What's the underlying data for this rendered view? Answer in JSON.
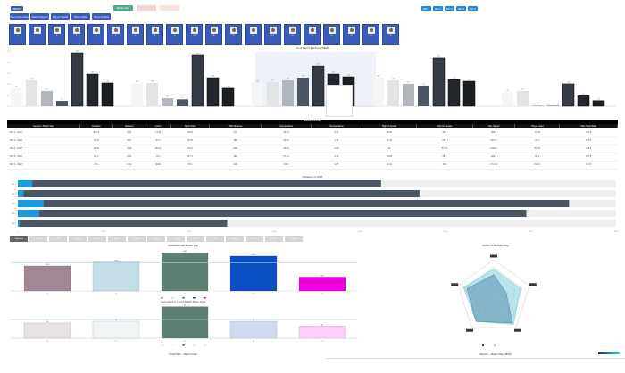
{
  "header": {
    "menu_label": "MENU",
    "filter_buttons": [
      "Match Day",
      "",
      ""
    ],
    "nav_buttons": [
      "MD 1",
      "MD 2",
      "MD 3",
      "MD 4",
      "MD 5"
    ],
    "view_buttons": [
      "Team Overview",
      "Match Report",
      "Player Detail",
      "Team Stats",
      "Team Charts"
    ]
  },
  "players": [
    {
      "num": "1"
    },
    {
      "num": "2"
    },
    {
      "num": "3"
    },
    {
      "num": "4"
    },
    {
      "num": "5"
    },
    {
      "num": "6"
    },
    {
      "num": "7"
    },
    {
      "num": "8"
    },
    {
      "num": "9"
    },
    {
      "num": "10"
    },
    {
      "num": "11"
    },
    {
      "num": "12"
    },
    {
      "num": "13"
    },
    {
      "num": "14"
    },
    {
      "num": "15"
    },
    {
      "num": "16"
    },
    {
      "num": "17"
    },
    {
      "num": "18"
    },
    {
      "num": "19"
    },
    {
      "num": "20"
    }
  ],
  "colors": {
    "brand": "#3a5bb8",
    "accent": "#1a9be0",
    "dark_bar": "#4b5563",
    "highlight_panel": "#eef1f8"
  },
  "chart_data": [
    {
      "type": "bar",
      "title": "% vs Last 5 Matches (MD5)",
      "groups": 5,
      "series": [
        {
          "color": "#f4f5f6",
          "values": [
            81,
            105,
            105,
            129,
            63
          ]
        },
        {
          "color": "#e2e4e6",
          "values": [
            117,
            105,
            110,
            117,
            69
          ]
        },
        {
          "color": "#b0b6bc",
          "values": [
            69,
            36,
            117,
            101,
            3
          ]
        },
        {
          "color": "#4b5563",
          "values": [
            24,
            31,
            129,
            93,
            2
          ]
        },
        {
          "color": "#353b45",
          "values": [
            242,
            230,
            181,
            218,
            101
          ]
        },
        {
          "color": "#23272d",
          "values": [
            145,
            129,
            145,
            121,
            47
          ]
        },
        {
          "color": "#1b1e22",
          "values": [
            105,
            81,
            133,
            113,
            25
          ]
        }
      ],
      "ylim": [
        0,
        250
      ]
    },
    {
      "type": "bar",
      "orientation": "horizontal",
      "title": "Distance vs HSR",
      "categories": [
        "MD 1",
        "MD 2",
        "MD 3",
        "MD 4",
        "MD 5"
      ],
      "series": [
        {
          "color": "#1a9be0",
          "values": [
            170,
            70,
            300,
            250,
            20
          ]
        },
        {
          "color": "#4b5563",
          "values": [
            4250,
            4700,
            6450,
            5950,
            2450
          ]
        }
      ],
      "xlim": [
        0,
        7000
      ]
    },
    {
      "type": "bar",
      "title": "Workload Last Match Day",
      "categories": [
        "P1",
        "P2",
        "P3",
        "P4",
        "P5"
      ],
      "values": [
        1220,
        1420,
        1860,
        1700,
        680
      ],
      "colors": [
        "#a08796",
        "#c5dfe8",
        "#5f7f72",
        "#0a4fc2",
        "#f000e0"
      ],
      "reference": 1360,
      "ylim": [
        0,
        2000
      ]
    },
    {
      "type": "bar",
      "title": "Compared to Last 5 Match Days Type",
      "categories": [
        "P1",
        "P2",
        "P3",
        "P4",
        "P5"
      ],
      "values": [
        45,
        50,
        93,
        50,
        36
      ],
      "colors": [
        "#e8e2e6",
        "#f0f5f5",
        "#5f7f72",
        "#d0dbef",
        "#fdd0f8"
      ],
      "reference": 55,
      "ylim": [
        0,
        100
      ]
    },
    {
      "type": "radar",
      "title": "Metric vs Session Avg",
      "axes": 5,
      "series": [
        {
          "color": "#5b8fb0",
          "values": [
            0.6,
            0.35,
            0.85,
            0.8,
            0.75
          ]
        },
        {
          "color": "#7fd0d8",
          "values": [
            0.75,
            0.75,
            0.9,
            0.8,
            0.85
          ]
        }
      ]
    }
  ],
  "table": {
    "title": "Session Summary",
    "columns": [
      "Session / Match Day",
      "Duration",
      "Distance",
      "m/min",
      "Sprint Dist",
      "HSR Distance",
      "Accelerations",
      "Decelerations",
      "High Int Accels",
      "High Int Decels",
      "Max Speed",
      "Player Load",
      "Max Heart Rate"
    ],
    "rows": [
      [
        "MD 1 - CAM",
        "84.21",
        "4.61",
        "71.41",
        "10.81",
        "271",
        "20.71",
        "4.41",
        "66.61",
        "49.7",
        "482.1",
        "77.31",
        "187.5"
      ],
      [
        "MD 2 - CAM",
        "77.31",
        "4.97",
        "64.1",
        "16.81",
        "156",
        "30.31",
        "1.31",
        "51.61",
        "51.6",
        "462.1",
        "67.1",
        "187.5"
      ],
      [
        "MD 3 - CAM",
        "92.51",
        "6.68",
        "80.11",
        "23.41",
        "218",
        "33.01",
        "2.88",
        "91",
        "57.81",
        "1219.1",
        "57.61",
        "186.8"
      ],
      [
        "MD 4 - CAM",
        "91.1",
        "6.01",
        "70.1",
        "22.71",
        "183",
        "37.71",
        "2.31",
        "65.81",
        "48.5",
        "605.1",
        "80.1",
        "187.5"
      ],
      [
        "MD 5 - CAM",
        "37.1",
        "2.51",
        "40.81",
        "7.81",
        "108",
        "8.81",
        "1.87",
        "21.11",
        "31.1",
        "171.81",
        "30.21",
        "171.5"
      ]
    ]
  },
  "tabs": [
    "Workload",
    "Distance",
    "HSR",
    "Sprints",
    "Accels",
    "Decels",
    "Max Speed",
    "HR Max",
    "Load",
    "Impacts",
    "RPE",
    "Intensity",
    "Recovery",
    "Sleep",
    "Wellness"
  ],
  "bottom": {
    "scatter_title": "SCATTER - Match Input",
    "heatmap_title": "Players - Match Day (MD5)"
  }
}
